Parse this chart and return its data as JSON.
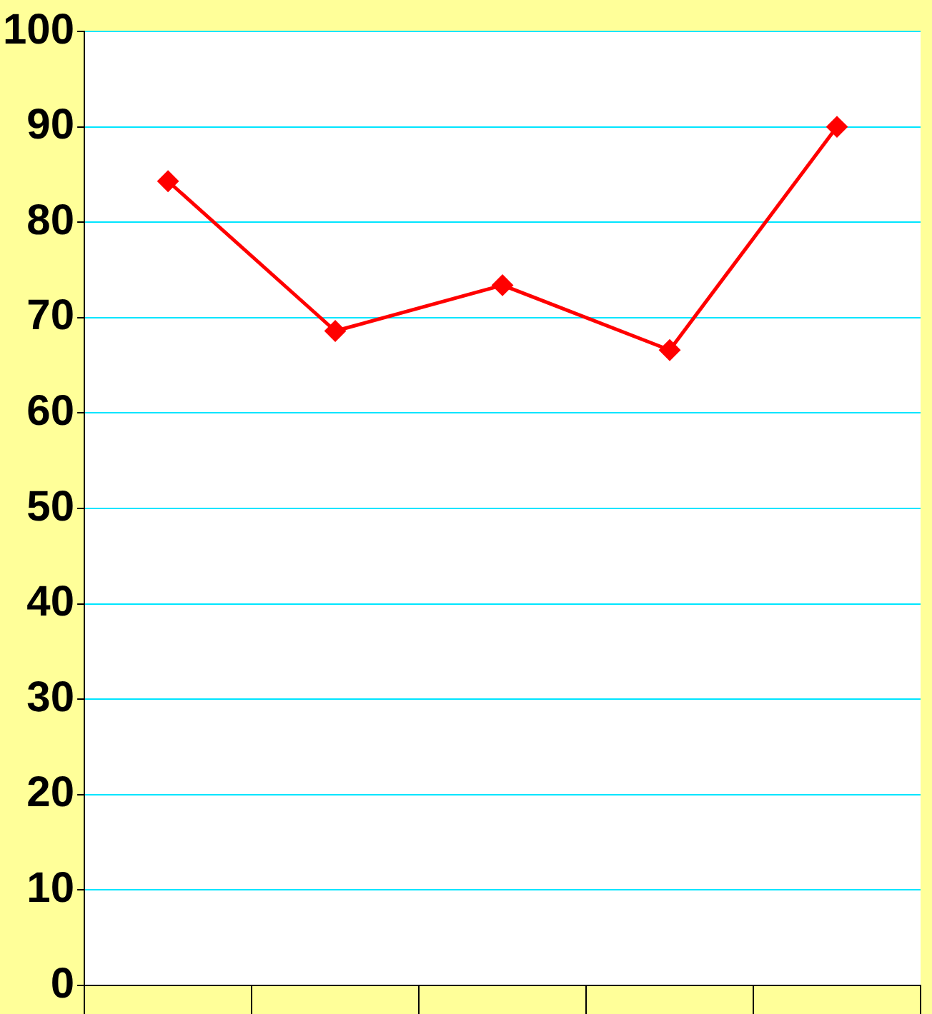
{
  "chart_data": {
    "type": "line",
    "categories": [
      null,
      null,
      null,
      null,
      null
    ],
    "series": [
      {
        "color": "#ff0000",
        "values": [
          84.3,
          68.6,
          73.4,
          66.6,
          90
        ]
      }
    ],
    "ylim": [
      0,
      100
    ],
    "yticks": [
      0,
      10,
      20,
      30,
      40,
      50,
      60,
      70,
      80,
      90,
      100
    ],
    "grid": "y",
    "legend": false,
    "marker": "diamond",
    "line_style": "solid",
    "tick_labels": "y"
  }
}
